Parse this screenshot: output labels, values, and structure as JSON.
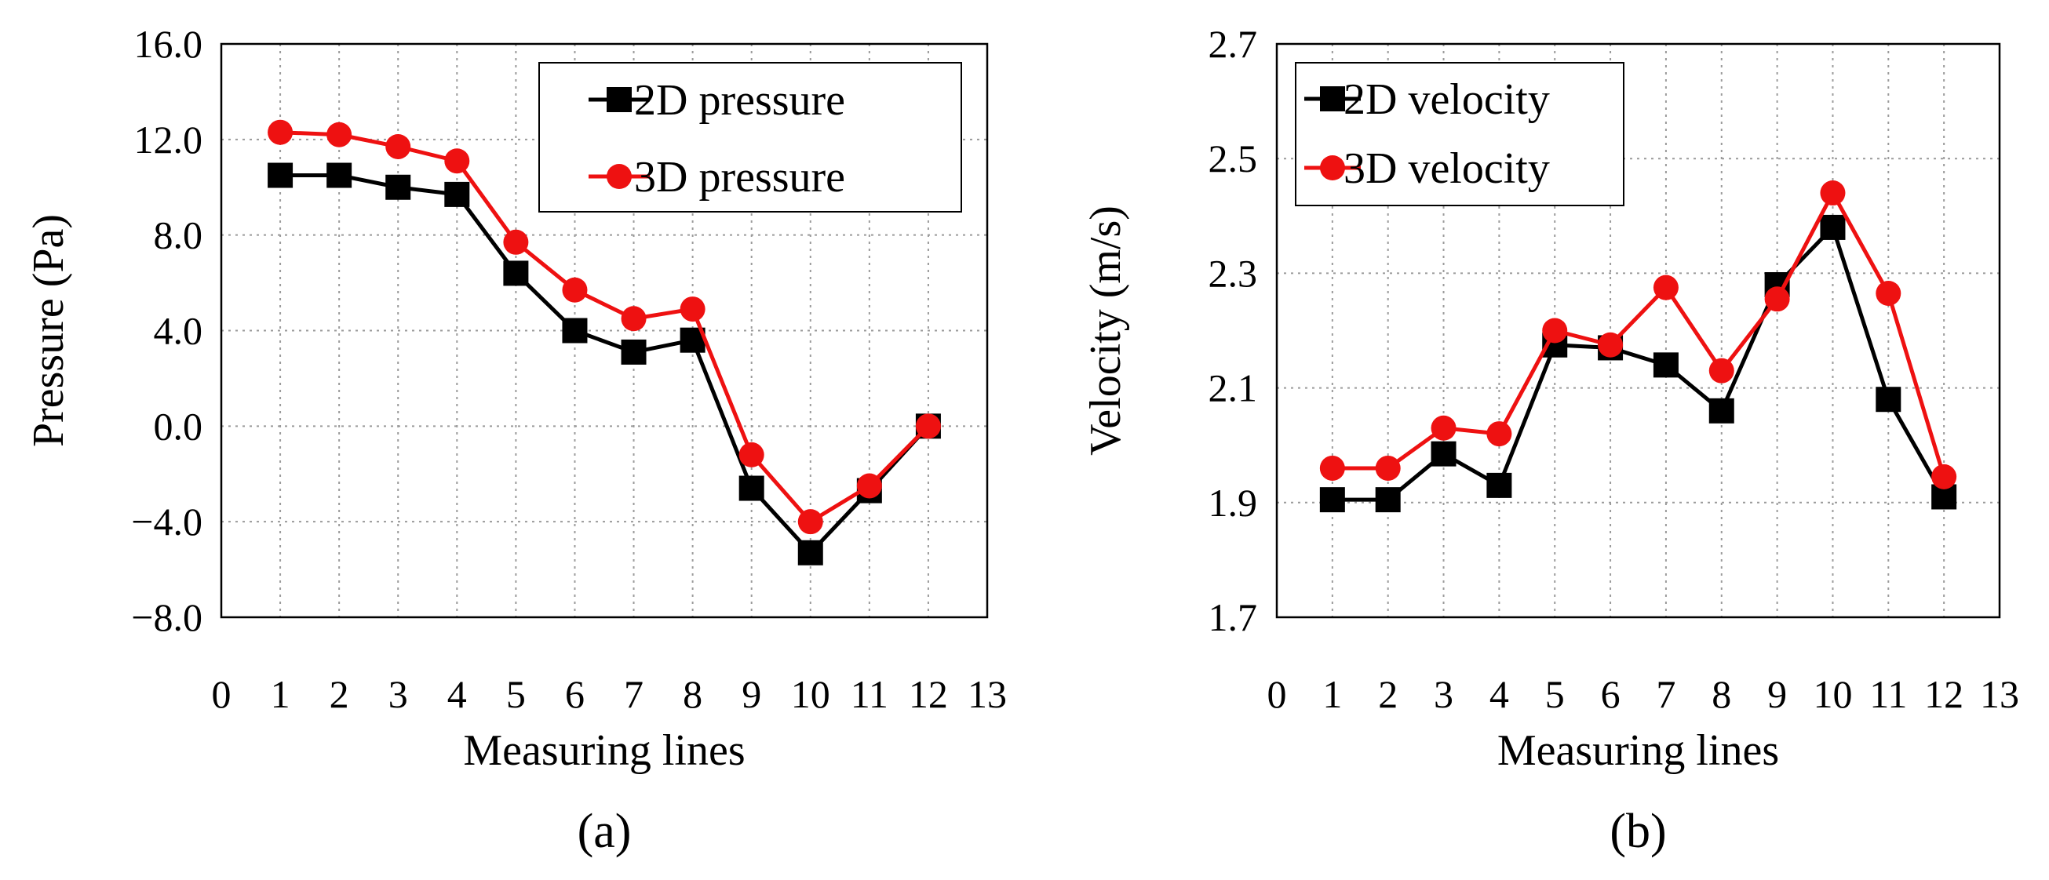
{
  "chart_data": [
    {
      "type": "line",
      "panel_label": "(a)",
      "xlabel": "Measuring lines",
      "ylabel": "Pressure (Pa)",
      "xlim": [
        0,
        13
      ],
      "ylim": [
        -8,
        16
      ],
      "xticks": [
        0,
        1,
        2,
        3,
        4,
        5,
        6,
        7,
        8,
        9,
        10,
        11,
        12,
        13
      ],
      "xtick_labels": [
        "0",
        "1",
        "2",
        "3",
        "4",
        "5",
        "6",
        "7",
        "8",
        "9",
        "10",
        "11",
        "12",
        "13"
      ],
      "yticks": [
        16,
        12,
        8,
        4,
        0,
        -4,
        -8
      ],
      "ytick_labels": [
        "16.0",
        "12.0",
        "8.0",
        "4.0",
        "0.0",
        "−4.0",
        "−8.0"
      ],
      "grid": true,
      "legend_position": "top-right",
      "x": [
        1,
        2,
        3,
        4,
        5,
        6,
        7,
        8,
        9,
        10,
        11,
        12
      ],
      "series": [
        {
          "name": "2D pressure",
          "color": "#000000",
          "marker": "square",
          "values": [
            10.5,
            10.5,
            10.0,
            9.7,
            6.4,
            4.0,
            3.1,
            3.6,
            -2.6,
            -5.3,
            -2.7,
            0.0
          ]
        },
        {
          "name": "3D pressure",
          "color": "#ee1111",
          "marker": "circle",
          "values": [
            12.3,
            12.2,
            11.7,
            11.1,
            7.7,
            5.7,
            4.5,
            4.9,
            -1.2,
            -4.0,
            -2.5,
            0.0
          ]
        }
      ]
    },
    {
      "type": "line",
      "panel_label": "(b)",
      "xlabel": "Measuring lines",
      "ylabel": "Velocity  (m/s)",
      "xlim": [
        0,
        13
      ],
      "ylim": [
        1.7,
        2.7
      ],
      "xticks": [
        0,
        1,
        2,
        3,
        4,
        5,
        6,
        7,
        8,
        9,
        10,
        11,
        12,
        13
      ],
      "xtick_labels": [
        "0",
        "1",
        "2",
        "3",
        "4",
        "5",
        "6",
        "7",
        "8",
        "9",
        "10",
        "11",
        "12",
        "13"
      ],
      "yticks": [
        2.7,
        2.5,
        2.3,
        2.1,
        1.9,
        1.7
      ],
      "ytick_labels": [
        "2.7",
        "2.5",
        "2.3",
        "2.1",
        "1.9",
        "1.7"
      ],
      "grid": true,
      "legend_position": "top-left",
      "x": [
        1,
        2,
        3,
        4,
        5,
        6,
        7,
        8,
        9,
        10,
        11,
        12
      ],
      "series": [
        {
          "name": "2D velocity",
          "color": "#000000",
          "marker": "square",
          "values": [
            1.905,
            1.905,
            1.985,
            1.93,
            2.175,
            2.17,
            2.14,
            2.06,
            2.28,
            2.38,
            2.08,
            1.91
          ]
        },
        {
          "name": "3D velocity",
          "color": "#ee1111",
          "marker": "circle",
          "values": [
            1.96,
            1.96,
            2.03,
            2.02,
            2.2,
            2.175,
            2.275,
            2.13,
            2.255,
            2.44,
            2.265,
            1.945
          ]
        }
      ]
    }
  ]
}
